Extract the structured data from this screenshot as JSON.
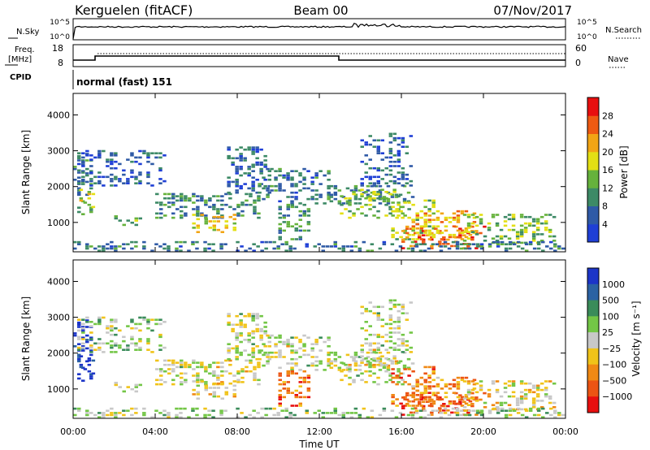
{
  "header": {
    "station": "Kerguelen (fitACF)",
    "beam": "Beam 00",
    "date": "07/Nov/2017"
  },
  "noise_panel": {
    "left_label": "N.Sky",
    "right_label": "N.Search",
    "left_ticks": [
      "10^5",
      "10^0"
    ],
    "right_ticks": [
      "10^5",
      "10^0"
    ]
  },
  "freq_panel": {
    "left_label_1": "Freq.",
    "left_label_2": "[MHz]",
    "right_label": "Nave",
    "left_ticks": [
      "18",
      "8"
    ],
    "right_ticks": [
      "60",
      "0"
    ]
  },
  "cpid": {
    "label": "CPID",
    "mode": "normal (fast) 151"
  },
  "colors": {
    "power": [
      "#1f3fd6",
      "#2f5aa6",
      "#3d8a66",
      "#66b23c",
      "#e3df14",
      "#f2a515",
      "#ee5a12",
      "#e80f0f"
    ],
    "velocity": [
      "#1c35c8",
      "#2b62a3",
      "#3a8c5a",
      "#73c646",
      "#c8c8c8",
      "#f0c319",
      "#f08914",
      "#ec5413",
      "#e80f0f"
    ],
    "ground_scatter": "#c0c0c0"
  },
  "chart_data": [
    {
      "type": "heatmap",
      "name": "power",
      "ylabel": "Slant Range [km]",
      "ylim": [
        180,
        4600
      ],
      "yticks": [
        "4000",
        "3000",
        "2000",
        "1000"
      ],
      "xlim": [
        0,
        24
      ],
      "colorbar_label": "Power [dB]",
      "colorbar_ticks": [
        "28",
        "24",
        "20",
        "16",
        "12",
        "8",
        "4"
      ],
      "colorbar_range": [
        0,
        32
      ]
    },
    {
      "type": "heatmap",
      "name": "velocity",
      "ylabel": "Slant Range [km]",
      "ylim": [
        180,
        4600
      ],
      "yticks": [
        "4000",
        "3000",
        "2000",
        "1000"
      ],
      "xlim": [
        0,
        24
      ],
      "xlabel": "Time UT",
      "xticks": [
        "00:00",
        "04:00",
        "08:00",
        "12:00",
        "16:00",
        "20:00",
        "00:00"
      ],
      "colorbar_label": "Velocity [m s⁻¹]",
      "colorbar_ticks": [
        "1000",
        "500",
        "100",
        "25",
        "−25",
        "−100",
        "−500",
        "−1000"
      ]
    }
  ],
  "echo_bands": [
    {
      "t": [
        0.0,
        0.9
      ],
      "r": [
        1200,
        2900
      ],
      "p": 9,
      "v": 0.0
    },
    {
      "t": [
        0.3,
        0.9
      ],
      "r": [
        1400,
        1900
      ],
      "p": 18,
      "v": 0.05
    },
    {
      "t": [
        0.2,
        4.5
      ],
      "r": [
        2000,
        3000
      ],
      "p": 6,
      "v": 0.45
    },
    {
      "t": [
        2.0,
        3.5
      ],
      "r": [
        900,
        1200
      ],
      "p": 12,
      "v": 0.5
    },
    {
      "t": [
        4.0,
        9.0
      ],
      "r": [
        1100,
        1800
      ],
      "p": 9,
      "v": 0.5
    },
    {
      "t": [
        5.8,
        7.8
      ],
      "r": [
        700,
        1200
      ],
      "p": 19,
      "v": 0.55
    },
    {
      "t": [
        7.5,
        9.5
      ],
      "r": [
        1800,
        3100
      ],
      "p": 7,
      "v": 0.5
    },
    {
      "t": [
        9.0,
        12.5
      ],
      "r": [
        1500,
        2500
      ],
      "p": 8,
      "v": 0.5
    },
    {
      "t": [
        10.0,
        11.5
      ],
      "r": [
        500,
        1500
      ],
      "p": 11,
      "v": 0.8
    },
    {
      "t": [
        12.5,
        16.5
      ],
      "r": [
        1500,
        2000
      ],
      "p": 9,
      "v": 0.5
    },
    {
      "t": [
        13.0,
        16.0
      ],
      "r": [
        1100,
        1900
      ],
      "p": 14,
      "v": 0.5
    },
    {
      "t": [
        14.0,
        16.5
      ],
      "r": [
        2000,
        3500
      ],
      "p": 6,
      "v": 0.5
    },
    {
      "t": [
        15.5,
        17.5
      ],
      "r": [
        500,
        1600
      ],
      "p": 15,
      "v": 0.8
    },
    {
      "t": [
        16.0,
        20.0
      ],
      "r": [
        250,
        900
      ],
      "p": 26,
      "v": 0.85
    },
    {
      "t": [
        16.5,
        19.5
      ],
      "r": [
        500,
        1300
      ],
      "p": 21,
      "v": 0.7
    },
    {
      "t": [
        19.0,
        23.5
      ],
      "r": [
        400,
        1200
      ],
      "p": 14,
      "v": 0.55
    },
    {
      "t": [
        0.0,
        24.0
      ],
      "r": [
        180,
        480
      ],
      "p": 8,
      "v": 0.45
    }
  ]
}
